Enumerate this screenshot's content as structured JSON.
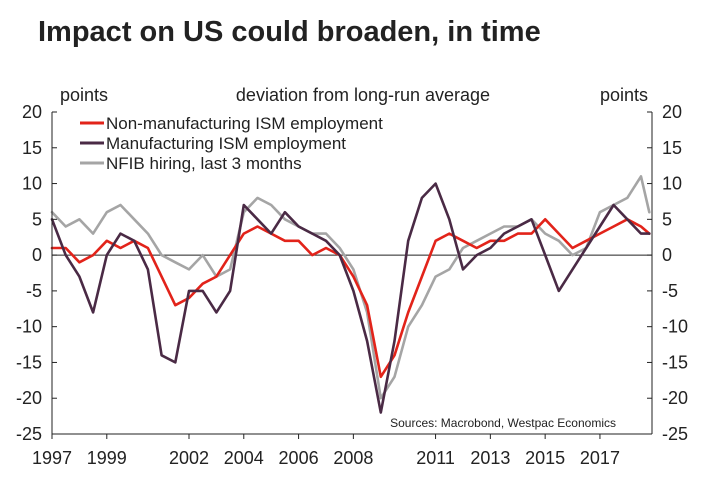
{
  "chart_data": {
    "type": "line",
    "title": "Impact on US could broaden, in time",
    "subtitle": "deviation from long-run average",
    "ylabel_left": "points",
    "ylabel_right": "points",
    "ylim": [
      -25,
      20
    ],
    "yticks": [
      -25,
      -20,
      -15,
      -10,
      -5,
      0,
      5,
      10,
      15,
      20
    ],
    "ytick_labels_left": [
      "-25",
      "-20",
      "-15",
      "-10",
      "-5",
      "0",
      "5",
      "10",
      "15",
      "20"
    ],
    "ytick_labels_right": [
      "-25",
      "-20",
      "-15",
      "-10",
      "-5",
      "0",
      "5",
      "10",
      "15",
      "20"
    ],
    "xlim": [
      1997,
      2018.9
    ],
    "xticks": [
      1997,
      1999,
      2002,
      2004,
      2006,
      2008,
      2011,
      2013,
      2015,
      2017
    ],
    "xtick_labels": [
      "1997",
      "1999",
      "2002",
      "2004",
      "2006",
      "2008",
      "2011",
      "2013",
      "2015",
      "2017"
    ],
    "source": "Sources: Macrobond, Westpac Economics",
    "legend_position": "top-left",
    "series": [
      {
        "name": "Non-manufacturing ISM employment",
        "color": "#e2231a",
        "x": [
          1997.0,
          1997.5,
          1998.0,
          1998.5,
          1999.0,
          1999.5,
          2000.0,
          2000.5,
          2001.0,
          2001.5,
          2002.0,
          2002.5,
          2003.0,
          2003.5,
          2004.0,
          2004.5,
          2005.0,
          2005.5,
          2006.0,
          2006.5,
          2007.0,
          2007.5,
          2008.0,
          2008.5,
          2009.0,
          2009.5,
          2010.0,
          2010.5,
          2011.0,
          2011.5,
          2012.0,
          2012.5,
          2013.0,
          2013.5,
          2014.0,
          2014.5,
          2015.0,
          2015.5,
          2016.0,
          2016.5,
          2017.0,
          2017.5,
          2018.0,
          2018.5,
          2018.8
        ],
        "values": [
          1,
          1,
          -1,
          0,
          2,
          1,
          2,
          1,
          -3,
          -7,
          -6,
          -4,
          -3,
          0,
          3,
          4,
          3,
          2,
          2,
          0,
          1,
          0,
          -3,
          -7,
          -17,
          -14,
          -8,
          -3,
          2,
          3,
          2,
          1,
          2,
          2,
          3,
          3,
          5,
          3,
          1,
          2,
          3,
          4,
          5,
          4,
          3
        ]
      },
      {
        "name": "Manufacturing ISM employment",
        "color": "#4a2a45",
        "x": [
          1997.0,
          1997.5,
          1998.0,
          1998.5,
          1999.0,
          1999.5,
          2000.0,
          2000.5,
          2001.0,
          2001.5,
          2002.0,
          2002.5,
          2003.0,
          2003.5,
          2004.0,
          2004.5,
          2005.0,
          2005.5,
          2006.0,
          2006.5,
          2007.0,
          2007.5,
          2008.0,
          2008.5,
          2009.0,
          2009.5,
          2010.0,
          2010.5,
          2011.0,
          2011.5,
          2012.0,
          2012.5,
          2013.0,
          2013.5,
          2014.0,
          2014.5,
          2015.0,
          2015.5,
          2016.0,
          2016.5,
          2017.0,
          2017.5,
          2018.0,
          2018.5,
          2018.8
        ],
        "values": [
          5,
          0,
          -3,
          -8,
          0,
          3,
          2,
          -2,
          -14,
          -15,
          -5,
          -5,
          -8,
          -5,
          7,
          5,
          3,
          6,
          4,
          3,
          2,
          0,
          -5,
          -12,
          -22,
          -12,
          2,
          8,
          10,
          5,
          -2,
          0,
          1,
          3,
          4,
          5,
          0,
          -5,
          -2,
          1,
          4,
          7,
          5,
          3,
          3
        ]
      },
      {
        "name": "NFIB hiring, last 3 months",
        "color": "#a5a5a5",
        "x": [
          1997.0,
          1997.5,
          1998.0,
          1998.5,
          1999.0,
          1999.5,
          2000.0,
          2000.5,
          2001.0,
          2001.5,
          2002.0,
          2002.5,
          2003.0,
          2003.5,
          2004.0,
          2004.5,
          2005.0,
          2005.5,
          2006.0,
          2006.5,
          2007.0,
          2007.5,
          2008.0,
          2008.5,
          2009.0,
          2009.5,
          2010.0,
          2010.5,
          2011.0,
          2011.5,
          2012.0,
          2012.5,
          2013.0,
          2013.5,
          2014.0,
          2014.5,
          2015.0,
          2015.5,
          2016.0,
          2016.5,
          2017.0,
          2017.5,
          2018.0,
          2018.5,
          2018.8
        ],
        "values": [
          6,
          4,
          5,
          3,
          6,
          7,
          5,
          3,
          0,
          -1,
          -2,
          0,
          -3,
          -2,
          6,
          8,
          7,
          5,
          4,
          3,
          3,
          1,
          -2,
          -8,
          -20,
          -17,
          -10,
          -7,
          -3,
          -2,
          1,
          2,
          3,
          4,
          4,
          5,
          3,
          2,
          0,
          1,
          6,
          7,
          8,
          11,
          6
        ]
      }
    ]
  }
}
